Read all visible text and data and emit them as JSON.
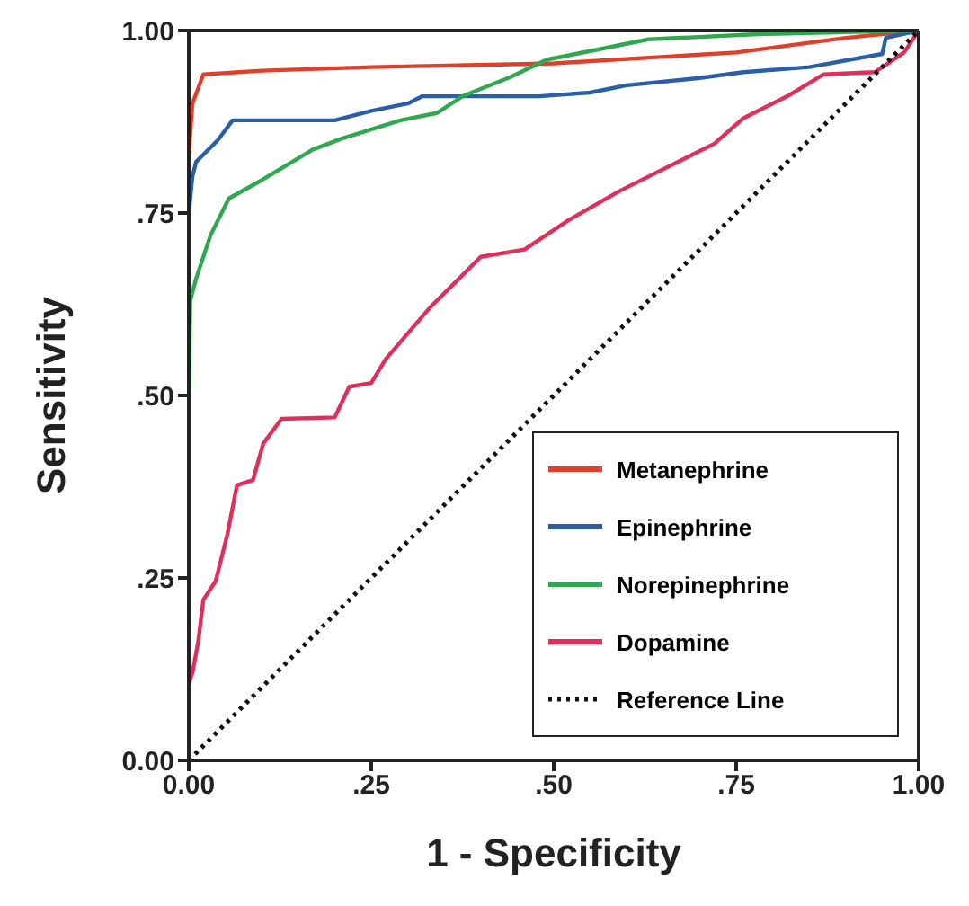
{
  "chart_data": {
    "type": "line",
    "xlabel": "1 - Specificity",
    "ylabel": "Sensitivity",
    "xlim": [
      0,
      1
    ],
    "ylim": [
      0,
      1
    ],
    "xticks": [
      {
        "value": 0,
        "label": "0.00"
      },
      {
        "value": 0.25,
        "label": ".25"
      },
      {
        "value": 0.5,
        "label": ".50"
      },
      {
        "value": 0.75,
        "label": ".75"
      },
      {
        "value": 1,
        "label": "1.00"
      }
    ],
    "yticks": [
      {
        "value": 0,
        "label": "0.00"
      },
      {
        "value": 0.25,
        "label": ".25"
      },
      {
        "value": 0.5,
        "label": ".50"
      },
      {
        "value": 0.75,
        "label": ".75"
      },
      {
        "value": 1,
        "label": "1.00"
      }
    ],
    "legend": "bottom right",
    "marker": "none",
    "series": [
      {
        "name": "Metanephrine",
        "color": "#e0402a",
        "x": [
          0,
          0.005,
          0.02,
          0.1,
          0.25,
          0.5,
          0.75,
          0.9,
          1
        ],
        "values": [
          0.83,
          0.9,
          0.94,
          0.945,
          0.95,
          0.955,
          0.97,
          0.99,
          1
        ]
      },
      {
        "name": "Epinephrine",
        "color": "#2a5fa8",
        "x": [
          0,
          0.005,
          0.01,
          0.02,
          0.04,
          0.06,
          0.2,
          0.25,
          0.3,
          0.32,
          0.48,
          0.55,
          0.6,
          0.7,
          0.76,
          0.85,
          0.95,
          0.955,
          1
        ],
        "values": [
          0.75,
          0.8,
          0.82,
          0.83,
          0.85,
          0.877,
          0.877,
          0.89,
          0.9,
          0.91,
          0.91,
          0.915,
          0.925,
          0.935,
          0.943,
          0.95,
          0.968,
          0.99,
          1
        ]
      },
      {
        "name": "Norepinephrine",
        "color": "#2fa84f",
        "x": [
          0,
          0.002,
          0.01,
          0.03,
          0.055,
          0.1,
          0.17,
          0.21,
          0.29,
          0.34,
          0.375,
          0.44,
          0.49,
          0.53,
          0.63,
          0.78,
          1
        ],
        "values": [
          0.5,
          0.63,
          0.66,
          0.72,
          0.77,
          0.795,
          0.837,
          0.852,
          0.877,
          0.887,
          0.91,
          0.936,
          0.96,
          0.968,
          0.988,
          0.995,
          1
        ]
      },
      {
        "name": "Dopamine",
        "color": "#e0305a",
        "x": [
          0,
          0.005,
          0.013,
          0.02,
          0.037,
          0.053,
          0.066,
          0.088,
          0.102,
          0.127,
          0.2,
          0.22,
          0.25,
          0.27,
          0.33,
          0.4,
          0.46,
          0.52,
          0.59,
          0.63,
          0.72,
          0.76,
          0.82,
          0.87,
          0.94,
          0.98,
          1
        ],
        "values": [
          0.106,
          0.12,
          0.163,
          0.22,
          0.246,
          0.31,
          0.377,
          0.384,
          0.434,
          0.468,
          0.47,
          0.512,
          0.517,
          0.55,
          0.62,
          0.69,
          0.7,
          0.74,
          0.78,
          0.8,
          0.845,
          0.88,
          0.91,
          0.94,
          0.943,
          0.97,
          1
        ]
      },
      {
        "name": "Reference Line",
        "color": "#111111",
        "line_style": "dotted",
        "x": [
          0,
          1
        ],
        "values": [
          0,
          1
        ]
      }
    ]
  }
}
